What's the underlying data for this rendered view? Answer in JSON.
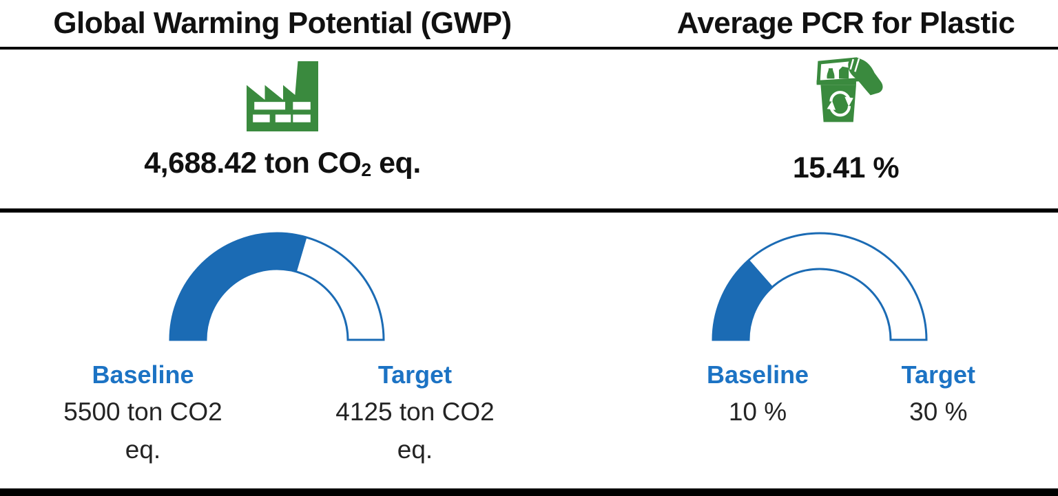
{
  "colors": {
    "gauge-blue": "#1B6BB4",
    "label-blue": "#1C73C4",
    "icon-green": "#3A8A3E",
    "text-dark": "#111111",
    "divider": "#000000"
  },
  "panels": [
    {
      "title": "Global Warming Potential (GWP)",
      "icon": "factory-icon",
      "value_main": "4,688.42 ton CO",
      "value_sub": "2",
      "value_tail": " eq.",
      "gauge": {
        "baseline_label": "Baseline",
        "baseline_value": "5500 ton CO2 eq.",
        "target_label": "Target",
        "target_value": "4125 ton CO2 eq."
      }
    },
    {
      "title": "Average PCR for Plastic",
      "icon": "recycle-bin-icon",
      "value_main": "15.41 %",
      "value_sub": "",
      "value_tail": "",
      "gauge": {
        "baseline_label": "Baseline",
        "baseline_value": "10 %",
        "target_label": "Target",
        "target_value": "30 %"
      }
    }
  ],
  "chart_data": [
    {
      "type": "gauge",
      "title": "Global Warming Potential (GWP)",
      "value": 4688.42,
      "unit": "ton CO2 eq.",
      "baseline": 5500,
      "target": 4125,
      "fill_fraction": 0.59,
      "arc_degrees": 180,
      "fill_color": "#1B6BB4",
      "track_color": "#FFFFFF",
      "baseline_label": "Baseline",
      "target_label": "Target"
    },
    {
      "type": "gauge",
      "title": "Average PCR for Plastic",
      "value": 15.41,
      "unit": "%",
      "baseline": 10,
      "target": 30,
      "fill_fraction": 0.27,
      "arc_degrees": 180,
      "fill_color": "#1B6BB4",
      "track_color": "#FFFFFF",
      "baseline_label": "Baseline",
      "target_label": "Target"
    }
  ]
}
